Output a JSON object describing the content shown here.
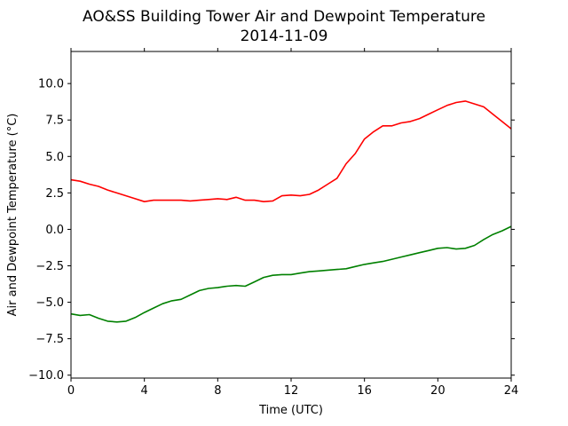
{
  "chart_data": {
    "type": "line",
    "title": "AO&SS Building Tower Air and Dewpoint Temperature",
    "subtitle": "2014-11-09",
    "xlabel": "Time (UTC)",
    "ylabel": "Air and Dewpoint Temperature (°C)",
    "xlim": [
      0,
      24
    ],
    "ylim": [
      -10.2,
      12.2
    ],
    "xticks": [
      0,
      4,
      8,
      12,
      16,
      20,
      24
    ],
    "xtick_labels": [
      "0",
      "4",
      "8",
      "12",
      "16",
      "20",
      "24"
    ],
    "yticks": [
      -10,
      -7.5,
      -5,
      -2.5,
      0,
      2.5,
      5,
      7.5,
      10
    ],
    "ytick_labels": [
      "−10.0",
      "−7.5",
      "−5.0",
      "−2.5",
      "0.0",
      "2.5",
      "5.0",
      "7.5",
      "10.0"
    ],
    "grid": false,
    "legend": "none",
    "series": [
      {
        "color": "#ff0000",
        "x": [
          0,
          0.5,
          1,
          1.5,
          2,
          2.5,
          3,
          3.5,
          4,
          4.5,
          5,
          5.5,
          6,
          6.5,
          7,
          7.5,
          8,
          8.5,
          9,
          9.5,
          10,
          10.5,
          11,
          11.5,
          12,
          12.5,
          13,
          13.5,
          14,
          14.5,
          15,
          15.5,
          16,
          16.5,
          17,
          17.5,
          18,
          18.5,
          19,
          19.5,
          20,
          20.5,
          21,
          21.5,
          22,
          22.5,
          23,
          23.5,
          24
        ],
        "y": [
          3.4,
          3.3,
          3.1,
          2.95,
          2.7,
          2.5,
          2.3,
          2.1,
          1.9,
          2.0,
          2.0,
          2.0,
          2.0,
          1.95,
          2.0,
          2.05,
          2.1,
          2.05,
          2.2,
          2.0,
          2.0,
          1.9,
          1.95,
          2.3,
          2.35,
          2.3,
          2.4,
          2.7,
          3.1,
          3.5,
          4.5,
          5.2,
          6.2,
          6.7,
          7.1,
          7.1,
          7.3,
          7.4,
          7.6,
          7.9,
          8.2,
          8.5,
          8.7,
          8.8,
          8.6,
          8.4,
          7.9,
          7.4,
          6.9
        ]
      },
      {
        "color": "#008000",
        "x": [
          0,
          0.5,
          1,
          1.5,
          2,
          2.5,
          3,
          3.5,
          4,
          4.5,
          5,
          5.5,
          6,
          6.5,
          7,
          7.5,
          8,
          8.5,
          9,
          9.5,
          10,
          10.5,
          11,
          11.5,
          12,
          12.5,
          13,
          13.5,
          14,
          14.5,
          15,
          15.5,
          16,
          16.5,
          17,
          17.5,
          18,
          18.5,
          19,
          19.5,
          20,
          20.5,
          21,
          21.5,
          22,
          22.5,
          23,
          23.5,
          24
        ],
        "y": [
          -5.8,
          -5.9,
          -5.85,
          -6.1,
          -6.3,
          -6.35,
          -6.3,
          -6.05,
          -5.7,
          -5.4,
          -5.1,
          -4.9,
          -4.8,
          -4.5,
          -4.2,
          -4.05,
          -4.0,
          -3.9,
          -3.85,
          -3.9,
          -3.6,
          -3.3,
          -3.15,
          -3.1,
          -3.1,
          -3.0,
          -2.9,
          -2.85,
          -2.8,
          -2.75,
          -2.7,
          -2.55,
          -2.4,
          -2.3,
          -2.2,
          -2.05,
          -1.9,
          -1.75,
          -1.6,
          -1.45,
          -1.3,
          -1.25,
          -1.35,
          -1.3,
          -1.1,
          -0.7,
          -0.35,
          -0.1,
          0.2
        ]
      }
    ]
  }
}
